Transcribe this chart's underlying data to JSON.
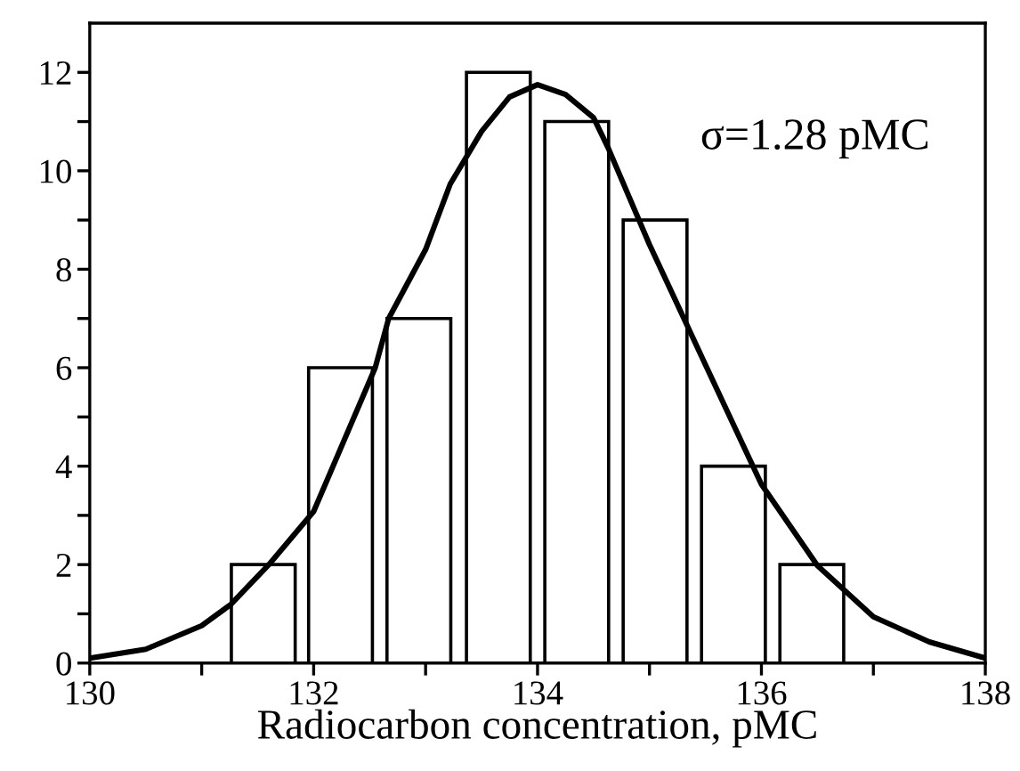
{
  "chart_data": {
    "type": "bar",
    "xlabel": "Radiocarbon concentration, pMC",
    "annotations": [
      "σ=1.28 pMC"
    ],
    "xlim": [
      130,
      138
    ],
    "ylim": [
      0,
      13
    ],
    "xticks": [
      130,
      {
        "value": 131,
        "label": null
      },
      132,
      {
        "value": 133,
        "label": null
      },
      134,
      {
        "value": 135,
        "label": null
      },
      136,
      {
        "value": 137,
        "label": null
      },
      138
    ],
    "yticks": [
      0,
      {
        "value": 1,
        "label": null
      },
      2,
      {
        "value": 3,
        "label": null
      },
      4,
      {
        "value": 5,
        "label": null
      },
      6,
      {
        "value": 7,
        "label": null
      },
      8,
      {
        "value": 9,
        "label": null
      },
      10,
      {
        "value": 11,
        "label": null
      },
      12
    ],
    "grid": false,
    "series": [
      {
        "color": "#000000",
        "x": [
          131.55,
          132.24,
          132.94,
          133.65,
          134.35,
          135.05,
          135.75,
          136.45
        ],
        "values": [
          2,
          6,
          7,
          12,
          11,
          9,
          4,
          2
        ]
      },
      {
        "type": "line",
        "color": "#000000",
        "marker": "none",
        "line_style": "solid",
        "x": [
          130,
          130.5,
          131,
          131.26,
          131.6,
          132,
          132.55,
          132.67,
          133,
          133.22,
          133.5,
          133.75,
          134,
          134.25,
          134.5,
          134.63,
          135,
          135.5,
          136,
          136.5,
          137,
          137.5,
          138
        ],
        "values": [
          0.1,
          0.28,
          0.76,
          1.19,
          2,
          3.08,
          6,
          7,
          8.4,
          9.73,
          10.8,
          11.5,
          11.75,
          11.55,
          11.08,
          10.47,
          8.5,
          6.06,
          3.63,
          1.98,
          0.94,
          0.43,
          0.1
        ]
      }
    ]
  }
}
